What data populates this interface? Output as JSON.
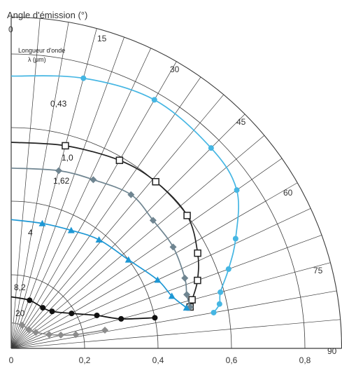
{
  "chart_data": {
    "type": "polar",
    "title": "Angle d'émission (°)",
    "legend_title": [
      "Longueur d'onde",
      "λ (μm)"
    ],
    "angle_ticks": [
      "0",
      "15",
      "30",
      "45",
      "60",
      "75",
      "90"
    ],
    "radius_ticks": [
      "0",
      "0,2",
      "0,4",
      "0,6",
      "0,8"
    ],
    "radius_range": [
      0,
      0.9
    ],
    "angle_range_deg": [
      0,
      90
    ],
    "series": [
      {
        "name": "0,43",
        "color": "#45b6e3",
        "marker": "dot",
        "points": [
          [
            0,
            0.74
          ],
          [
            15,
            0.76
          ],
          [
            30,
            0.78
          ],
          [
            45,
            0.77
          ],
          [
            55,
            0.75
          ],
          [
            64,
            0.68
          ],
          [
            70,
            0.63
          ],
          [
            75,
            0.59
          ],
          [
            78,
            0.58
          ],
          [
            80,
            0.56
          ]
        ]
      },
      {
        "name": "1,0",
        "color": "#222222",
        "marker": "open-square",
        "points": [
          [
            0,
            0.56
          ],
          [
            15,
            0.57
          ],
          [
            30,
            0.59
          ],
          [
            41,
            0.6
          ],
          [
            53,
            0.6
          ],
          [
            63,
            0.57
          ],
          [
            70,
            0.54
          ],
          [
            75,
            0.51
          ],
          [
            77,
            0.5
          ]
        ]
      },
      {
        "name": "1,62",
        "color": "#6f8591",
        "marker": "diamond",
        "points": [
          [
            0,
            0.49
          ],
          [
            15,
            0.5
          ],
          [
            26,
            0.51
          ],
          [
            38,
            0.53
          ],
          [
            48,
            0.52
          ],
          [
            58,
            0.52
          ],
          [
            68,
            0.51
          ],
          [
            73,
            0.5
          ],
          [
            77,
            0.5
          ]
        ]
      },
      {
        "name": "4",
        "color": "#1d97d4",
        "marker": "triangle",
        "points": [
          [
            0,
            0.35
          ],
          [
            14,
            0.35
          ],
          [
            27,
            0.36
          ],
          [
            39,
            0.38
          ],
          [
            53,
            0.4
          ],
          [
            65,
            0.44
          ],
          [
            72,
            0.46
          ],
          [
            77,
            0.49
          ]
        ]
      },
      {
        "name": "8,2",
        "color": "#111111",
        "marker": "dot",
        "points": [
          [
            0,
            0.14
          ],
          [
            21,
            0.14
          ],
          [
            38,
            0.14
          ],
          [
            48,
            0.15
          ],
          [
            60,
            0.19
          ],
          [
            69,
            0.25
          ],
          [
            75,
            0.31
          ],
          [
            78,
            0.4
          ]
        ]
      },
      {
        "name": "20",
        "color": "#8c8c8c",
        "marker": "diamond",
        "points": [
          [
            0,
            0.07
          ],
          [
            25,
            0.07
          ],
          [
            43,
            0.07
          ],
          [
            57,
            0.08
          ],
          [
            70,
            0.11
          ],
          [
            75,
            0.14
          ],
          [
            78,
            0.18
          ],
          [
            79,
            0.26
          ]
        ]
      }
    ]
  }
}
